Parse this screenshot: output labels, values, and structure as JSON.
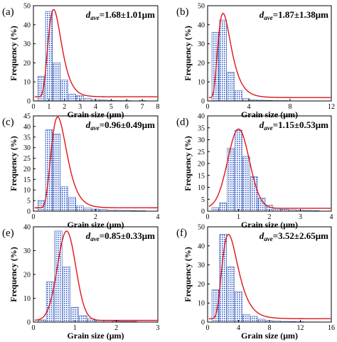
{
  "colors": {
    "bar_fill": "#2f5fd0",
    "bar_stroke": "#1f3f9a",
    "fit_curve": "#e0141a",
    "axis": "#000000"
  },
  "chart_data": [
    {
      "type": "bar",
      "panel_label": "(a)",
      "annotation_prefix": "d",
      "annotation_sub": "ave",
      "annotation_value": "=1.68±1.01μm",
      "xlabel": "Grain size (μm)",
      "ylabel": "Frequency (%)",
      "xlim": [
        0,
        8
      ],
      "ylim": [
        0,
        50
      ],
      "xticks": [
        "0",
        "1",
        "2",
        "3",
        "4",
        "5",
        "6",
        "7",
        "8"
      ],
      "yticks": [
        "0",
        "10",
        "20",
        "30",
        "40",
        "50"
      ],
      "bin_width": 0.5,
      "x": [
        0.5,
        1.0,
        1.5,
        2.0,
        2.5,
        3.0,
        3.5,
        4.0,
        4.5,
        5.0,
        5.5,
        6.0,
        6.5,
        7.0
      ],
      "values": [
        13,
        47,
        20,
        11,
        3.5,
        2.8,
        1.2,
        0.8,
        0.6,
        0.3,
        0.2,
        0.2,
        0.1,
        0.2
      ],
      "fit": {
        "type": "lognormal",
        "peak_x": 1.3,
        "peak_y": 48,
        "sigma": 0.33,
        "baseline": 2.2
      }
    },
    {
      "type": "bar",
      "panel_label": "(b)",
      "annotation_prefix": "d",
      "annotation_sub": "ave",
      "annotation_value": "=1.87±1.38μm",
      "xlabel": "Grain size (μm)",
      "ylabel": "Frequency (%)",
      "xlim": [
        0,
        12
      ],
      "ylim": [
        0,
        50
      ],
      "xticks": [
        "0",
        "4",
        "8",
        "12"
      ],
      "yticks": [
        "0",
        "10",
        "20",
        "30",
        "40",
        "50"
      ],
      "bin_width": 0.75,
      "x": [
        0.75,
        1.5,
        2.25,
        3.0,
        3.75,
        4.5,
        5.25,
        6.0,
        6.75,
        7.5,
        8.25,
        9.0,
        9.75,
        10.5
      ],
      "values": [
        36,
        42.5,
        15,
        5.5,
        1.2,
        0.6,
        0.4,
        0.3,
        0.2,
        0.2,
        0.1,
        0.1,
        0.1,
        0.1
      ],
      "fit": {
        "type": "lognormal",
        "peak_x": 1.5,
        "peak_y": 46,
        "sigma": 0.42,
        "baseline": 1.8
      }
    },
    {
      "type": "bar",
      "panel_label": "(c)",
      "annotation_prefix": "d",
      "annotation_sub": "ave",
      "annotation_value": "=0.96±0.49μm",
      "xlabel": "Grain size (μm)",
      "ylabel": "Frequency (%)",
      "xlim": [
        0,
        4
      ],
      "ylim": [
        0,
        45
      ],
      "xticks": [
        "0",
        "2",
        "4"
      ],
      "yticks": [
        "0",
        "5",
        "10",
        "15",
        "20",
        "25",
        "30",
        "35",
        "40",
        "45"
      ],
      "bin_width": 0.25,
      "x": [
        0.25,
        0.5,
        0.75,
        1.0,
        1.25,
        1.5,
        1.75,
        2.0,
        2.25,
        2.5,
        2.75,
        3.0,
        3.25,
        3.5
      ],
      "values": [
        5,
        38.5,
        36.5,
        11.5,
        6.5,
        2.5,
        1.5,
        1.0,
        0.8,
        0.6,
        0.5,
        0.4,
        0.3,
        0.2
      ],
      "fit": {
        "type": "lognormal",
        "peak_x": 0.78,
        "peak_y": 44.5,
        "sigma": 0.32,
        "baseline": 1.6
      }
    },
    {
      "type": "bar",
      "panel_label": "(d)",
      "annotation_prefix": "d",
      "annotation_sub": "ave",
      "annotation_value": "=1.15±0.53μm",
      "xlabel": "Grain size (μm)",
      "ylabel": "Frequency (%)",
      "xlim": [
        0,
        4
      ],
      "ylim": [
        0,
        40
      ],
      "xticks": [
        "0",
        "1",
        "2",
        "3",
        "4"
      ],
      "yticks": [
        "0",
        "5",
        "10",
        "15",
        "20",
        "25",
        "30",
        "35",
        "40"
      ],
      "bin_width": 0.25,
      "x": [
        0.25,
        0.5,
        0.75,
        1.0,
        1.25,
        1.5,
        1.75,
        2.0,
        2.25,
        2.5,
        2.75,
        3.0,
        3.25,
        3.5
      ],
      "values": [
        1.5,
        3.5,
        26.5,
        34,
        23,
        14.5,
        5.5,
        2.5,
        1.2,
        0.8,
        0.6,
        0.5,
        0.3,
        0.2
      ],
      "fit": {
        "type": "gaussian",
        "peak_x": 1.0,
        "peak_y": 34.5,
        "sigma": 0.35,
        "baseline": 1.2
      }
    },
    {
      "type": "bar",
      "panel_label": "(e)",
      "annotation_prefix": "d",
      "annotation_sub": "ave",
      "annotation_value": "=0.85±0.33μm",
      "xlabel": "Grain size (μm)",
      "ylabel": "Frequency (%)",
      "xlim": [
        0,
        3
      ],
      "ylim": [
        0,
        45
      ],
      "xticks": [
        "0",
        "1",
        "2",
        "3"
      ],
      "yticks": [
        "0",
        "10",
        "20",
        "30",
        "40"
      ],
      "bin_width": 0.2,
      "x": [
        0.2,
        0.4,
        0.6,
        0.8,
        1.0,
        1.2,
        1.4,
        1.6,
        1.8,
        2.0,
        2.2,
        2.4
      ],
      "values": [
        1.0,
        19,
        43,
        26,
        7,
        3,
        1.5,
        0.8,
        0.6,
        0.4,
        0.3,
        0.3
      ],
      "fit": {
        "type": "gaussian",
        "peak_x": 0.8,
        "peak_y": 43,
        "sigma": 0.22,
        "baseline": 0.8
      }
    },
    {
      "type": "bar",
      "panel_label": "(f)",
      "annotation_prefix": "d",
      "annotation_sub": "ave",
      "annotation_value": "=3.52±2.65μm",
      "xlabel": "Grain size (μm)",
      "ylabel": "Frequency (%)",
      "xlim": [
        0,
        16
      ],
      "ylim": [
        0,
        50
      ],
      "xticks": [
        "0",
        "4",
        "8",
        "12",
        "16"
      ],
      "yticks": [
        "0",
        "10",
        "20",
        "30",
        "40",
        "50"
      ],
      "bin_width": 1.0,
      "x": [
        1,
        2,
        3,
        4,
        5,
        6,
        7,
        8,
        9,
        10,
        11,
        12,
        13,
        14
      ],
      "values": [
        17,
        46,
        29,
        16,
        4,
        3,
        1.5,
        0.8,
        0.6,
        0.4,
        0.3,
        0.2,
        0.1,
        0.1
      ],
      "fit": {
        "type": "lognormal",
        "peak_x": 2.7,
        "peak_y": 46,
        "sigma": 0.38,
        "baseline": 1.8
      }
    }
  ]
}
